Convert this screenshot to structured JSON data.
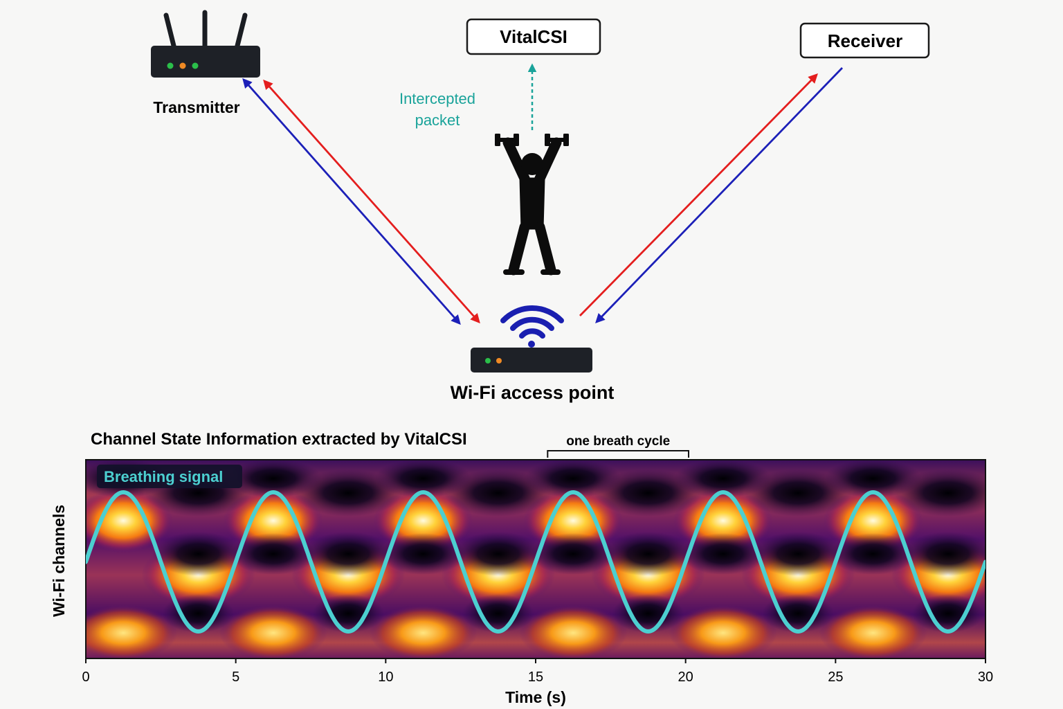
{
  "diagram": {
    "transmitter_label": "Transmitter",
    "receiver_label": "Receiver",
    "vitalcsi_label": "VitalCSI",
    "intercepted_line1": "Intercepted",
    "intercepted_line2": "packet",
    "access_point_label": "Wi-Fi access point",
    "icons": [
      "router-icon",
      "person-lifting-dumbbells-icon",
      "wifi-signal-icon",
      "access-point-icon"
    ],
    "colors": {
      "forward_arrow": "#e41e1e",
      "return_arrow": "#1c20b8",
      "intercept_arrow": "#1aa39a",
      "wifi_icon": "#1a1fb0",
      "led_green": "#2bbf4a",
      "led_orange": "#f08a24"
    }
  },
  "chart": {
    "title": "Channel State Information extracted by VitalCSI",
    "annotation": "one breath cycle",
    "legend_label": "Breathing signal",
    "xlabel": "Time (s)",
    "ylabel": "Wi-Fi channels"
  },
  "chart_data": {
    "type": "heatmap",
    "title": "Channel State Information extracted by VitalCSI",
    "xlabel": "Time (s)",
    "ylabel": "Wi-Fi channels",
    "xlim": [
      0,
      30
    ],
    "x_ticks": [
      0,
      5,
      10,
      15,
      20,
      25,
      30
    ],
    "colormap": "inferno",
    "bracket_range": [
      15.4,
      20.1
    ],
    "series": [
      {
        "name": "Breathing signal",
        "type": "line",
        "color": "#4ccfd0",
        "period_s": 5,
        "peaks_s": [
          1.25,
          6.25,
          11.25,
          16.25,
          21.25,
          26.25
        ],
        "troughs_s": [
          3.75,
          8.75,
          13.75,
          18.75,
          23.75,
          28.75
        ]
      }
    ]
  }
}
